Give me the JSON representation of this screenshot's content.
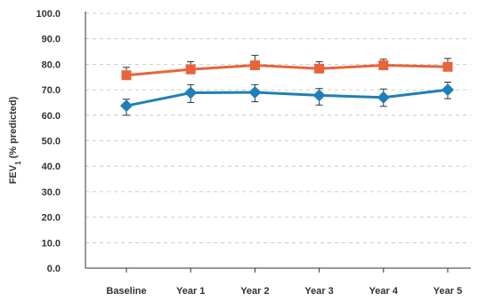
{
  "chart_data": {
    "type": "line",
    "title": "",
    "xlabel": "",
    "ylabel": "FEV",
    "ylabel_subscript": "1",
    "ylabel_suffix": " (% predicted)",
    "categories": [
      "Baseline",
      "Year 1",
      "Year 2",
      "Year 3",
      "Year 4",
      "Year 5"
    ],
    "ylim": [
      0,
      100
    ],
    "yticks": [
      "0.0",
      "10.0",
      "20.0",
      "30.0",
      "40.0",
      "50.0",
      "60.0",
      "70.0",
      "80.0",
      "90.0",
      "100.0"
    ],
    "grid": true,
    "legend": "none",
    "series": [
      {
        "marker": "square",
        "color": "#e8643a",
        "values": [
          75.7,
          78.0,
          79.6,
          78.3,
          79.6,
          79.0
        ],
        "error_upper": [
          78.8,
          81.0,
          83.5,
          81.0,
          82.0,
          82.3
        ]
      },
      {
        "marker": "diamond",
        "color": "#1f7fb8",
        "values": [
          63.7,
          68.8,
          69.0,
          67.8,
          67.0,
          70.0
        ],
        "error_lower": [
          60.0,
          65.0,
          65.3,
          64.0,
          63.5,
          66.5
        ],
        "error_upper": [
          66.3,
          72.0,
          72.0,
          70.5,
          70.3,
          73.0
        ]
      }
    ]
  }
}
